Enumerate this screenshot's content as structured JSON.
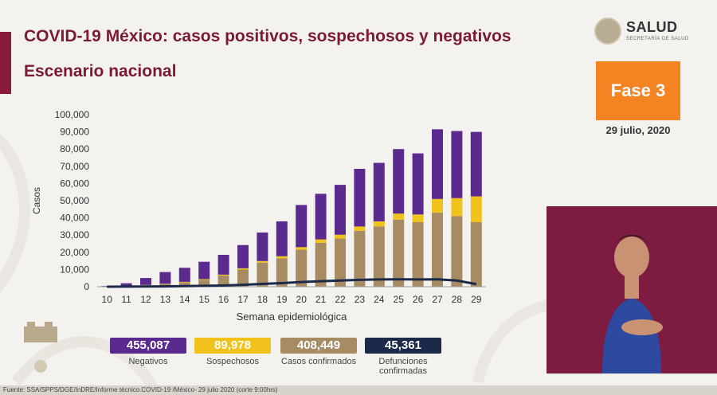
{
  "header": {
    "title": "COVID-19 México: casos positivos, sospechosos y negativos",
    "subtitle": "Escenario nacional"
  },
  "logo": {
    "text": "SALUD",
    "subtext": "SECRETARÍA DE SALUD"
  },
  "phase": {
    "label": "Fase 3",
    "date": "29 julio, 2020"
  },
  "legend": [
    {
      "value": "455,087",
      "label": "Negativos",
      "color": "#5b2a8f"
    },
    {
      "value": "89,978",
      "label": "Sospechosos",
      "color": "#f1c21b"
    },
    {
      "value": "408,449",
      "label": "Casos confirmados",
      "color": "#a68b63"
    },
    {
      "value": "45,361",
      "label": "Defunciones confirmadas",
      "color": "#1c2a4a"
    }
  ],
  "footer": {
    "text": "Fuente: SSA/SPPS/DGE/InDRE/Informe técnico.COVID-19 /México- 29 julio 2020 (corte 9:00hrs)"
  },
  "chart_data": {
    "type": "bar",
    "xlabel": "Semana epidemiológica",
    "ylabel": "Casos",
    "ylim": [
      0,
      100000
    ],
    "yticks": [
      "0",
      "10,000",
      "20,000",
      "30,000",
      "40,000",
      "50,000",
      "60,000",
      "70,000",
      "80,000",
      "90,000",
      "100,000"
    ],
    "categories": [
      "10",
      "11",
      "12",
      "13",
      "14",
      "15",
      "16",
      "17",
      "18",
      "19",
      "20",
      "21",
      "22",
      "23",
      "24",
      "25",
      "26",
      "27",
      "28",
      "29"
    ],
    "stacked": true,
    "series": [
      {
        "name": "Casos confirmados",
        "color": "#a68b63",
        "values": [
          100,
          400,
          900,
          1500,
          2500,
          4000,
          6500,
          10000,
          14000,
          16500,
          21500,
          25500,
          28000,
          32500,
          35000,
          39000,
          37500,
          43000,
          41000,
          37500
        ]
      },
      {
        "name": "Sospechosos",
        "color": "#f1c21b",
        "values": [
          50,
          100,
          150,
          200,
          300,
          400,
          500,
          700,
          900,
          1200,
          1500,
          2000,
          2200,
          2500,
          3000,
          3500,
          4500,
          8000,
          10500,
          15000
        ]
      },
      {
        "name": "Negativos",
        "color": "#5b2a8f",
        "values": [
          250,
          1500,
          4000,
          6800,
          8200,
          10100,
          11500,
          13500,
          16600,
          20300,
          24500,
          26500,
          29000,
          33500,
          34000,
          37500,
          35500,
          40500,
          39000,
          37500
        ]
      }
    ],
    "line": {
      "name": "Defunciones confirmadas",
      "color": "#1c2a4a",
      "values": [
        0,
        50,
        100,
        200,
        350,
        500,
        700,
        1100,
        1600,
        2100,
        2700,
        3200,
        3600,
        4000,
        4200,
        4300,
        4200,
        4300,
        3600,
        1500
      ]
    }
  }
}
